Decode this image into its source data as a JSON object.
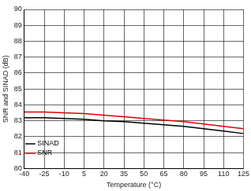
{
  "chart_data": {
    "type": "line",
    "x_label": "Temperature (°C)",
    "y_label": "SNR and SINAD (dB)",
    "x": [
      -40,
      -25,
      -10,
      5,
      20,
      35,
      50,
      65,
      80,
      95,
      110,
      125
    ],
    "series": [
      {
        "name": "SINAD",
        "color": "#000000",
        "values": [
          83.2,
          83.2,
          83.15,
          83.1,
          83.0,
          82.95,
          82.85,
          82.75,
          82.65,
          82.5,
          82.35,
          82.2
        ]
      },
      {
        "name": "SNR",
        "color": "#e00000",
        "values": [
          83.55,
          83.55,
          83.5,
          83.45,
          83.35,
          83.25,
          83.15,
          83.05,
          82.95,
          82.8,
          82.65,
          82.5
        ]
      }
    ],
    "xlim": [
      -40,
      125
    ],
    "xticks": [
      -40,
      -25,
      -10,
      5,
      20,
      35,
      50,
      65,
      80,
      95,
      110,
      125
    ],
    "ylim": [
      80,
      90
    ],
    "yticks": [
      80,
      81,
      82,
      83,
      84,
      85,
      86,
      87,
      88,
      89,
      90
    ],
    "grid": true,
    "legend": "upper right"
  }
}
